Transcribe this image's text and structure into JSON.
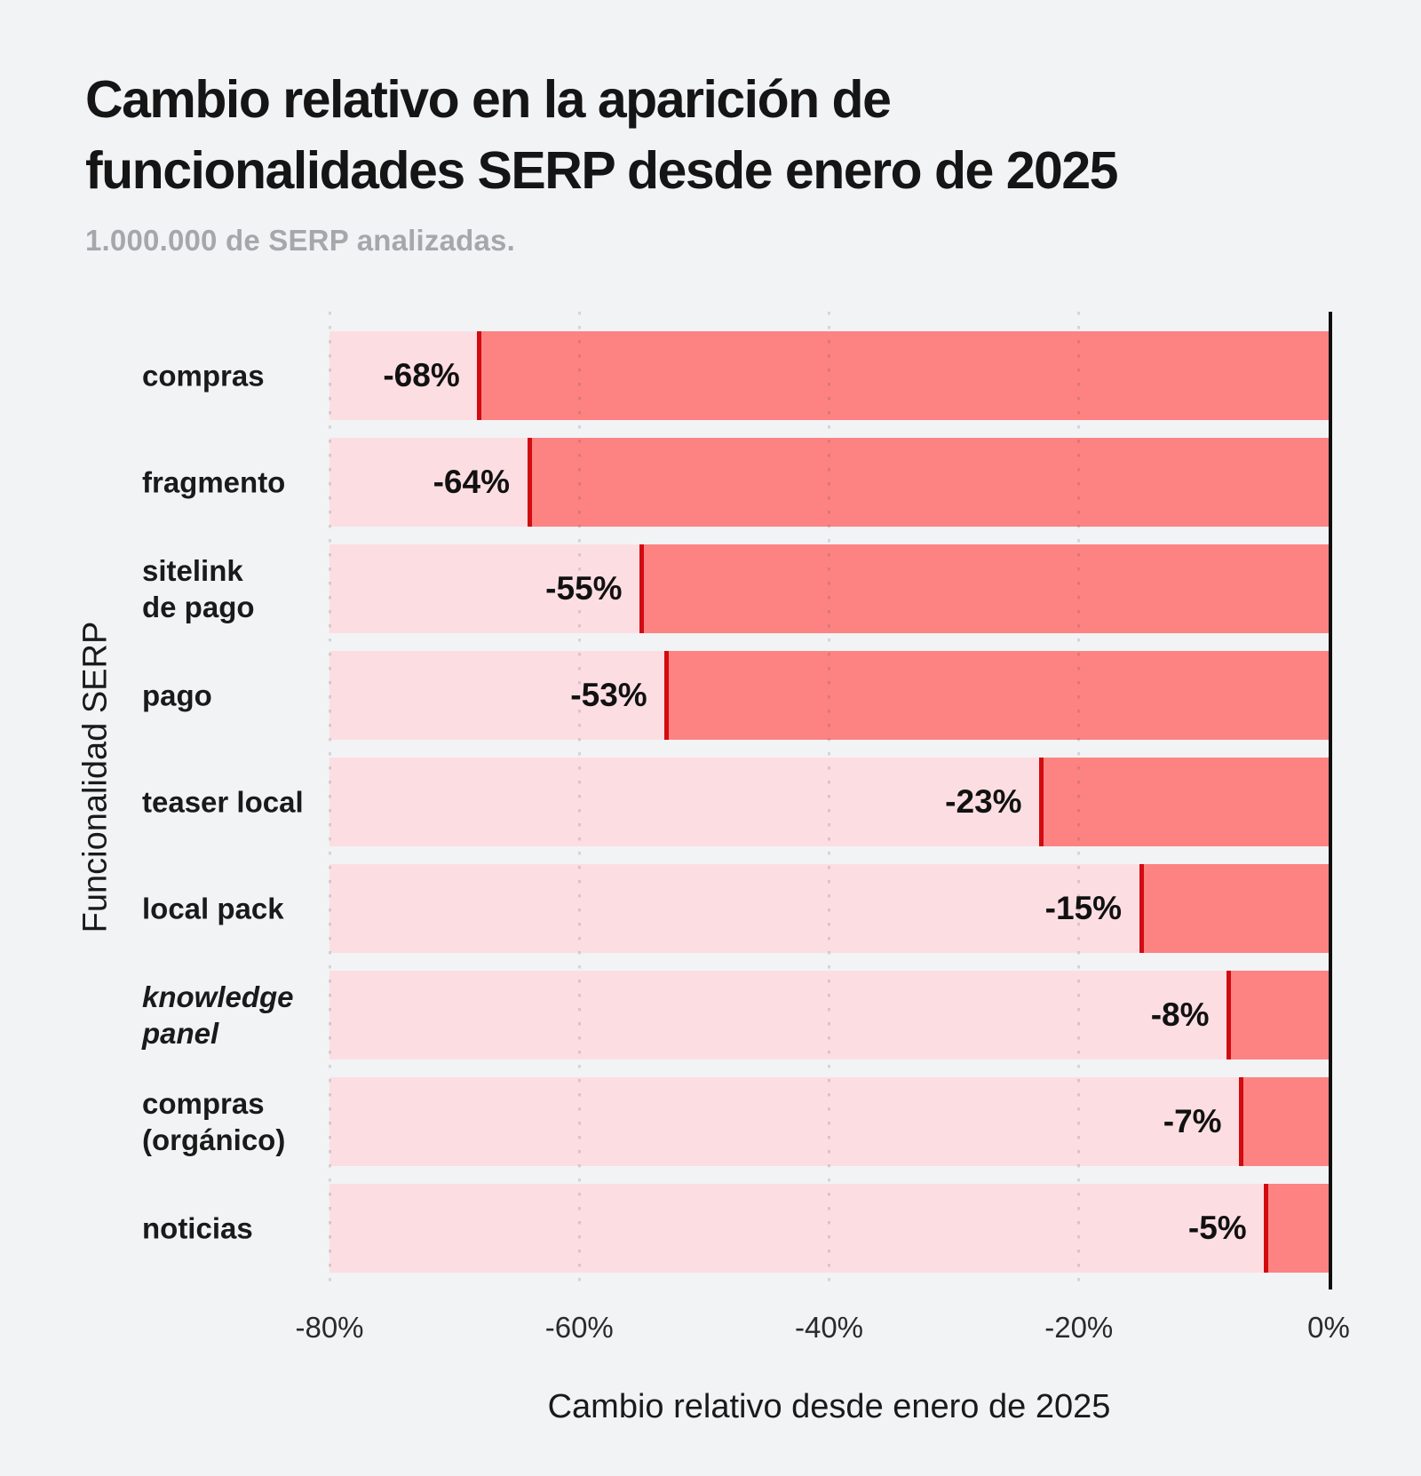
{
  "header": {
    "title": "Cambio relativo en la aparición de\nfuncionalidades SERP desde enero de 2025",
    "subtitle": "1.000.000 de SERP analizadas."
  },
  "chart_data": {
    "type": "bar",
    "orientation": "horizontal",
    "title": "Cambio relativo en la aparición de funcionalidades SERP desde enero de 2025",
    "subtitle": "1.000.000 de SERP analizadas.",
    "xlabel": "Cambio relativo desde enero de 2025",
    "ylabel": "Funcionalidad SERP",
    "categories": [
      "compras",
      "fragmento",
      "sitelink de pago",
      "pago",
      "teaser local",
      "local pack",
      "knowledge panel",
      "compras (orgánico)",
      "noticias"
    ],
    "categories_display": [
      "compras",
      "fragmento",
      "sitelink\nde pago",
      "pago",
      "teaser local",
      "local pack",
      "knowledge\npanel",
      "compras\n(orgánico)",
      "noticias"
    ],
    "italic_categories": [
      "knowledge panel"
    ],
    "values": [
      -68,
      -64,
      -55,
      -53,
      -23,
      -15,
      -8,
      -7,
      -5
    ],
    "value_labels": [
      "-68%",
      "-64%",
      "-55%",
      "-53%",
      "-23%",
      "-15%",
      "-8%",
      "-7%",
      "-5%"
    ],
    "xlim": [
      -80,
      0
    ],
    "xticks": [
      {
        "value": -80,
        "label": "-80%"
      },
      {
        "value": -60,
        "label": "-60%"
      },
      {
        "value": -40,
        "label": "-40%"
      },
      {
        "value": -20,
        "label": "-20%"
      },
      {
        "value": 0,
        "label": "0%"
      }
    ],
    "grid": "vertical-dotted",
    "legend": "none",
    "bar_style": "full-width light track from axis minimum, filled segment from value to zero, dark red marker line at value"
  },
  "colors": {
    "background": "#f2f3f5",
    "bar_track": "#fcdee2",
    "bar_fill": "#fd8383",
    "value_line": "#d10b10",
    "axis_line": "#0e0e0e",
    "title_text": "#151515",
    "subtitle_text": "#a7a7ab",
    "label_text": "#1a1a1a"
  }
}
